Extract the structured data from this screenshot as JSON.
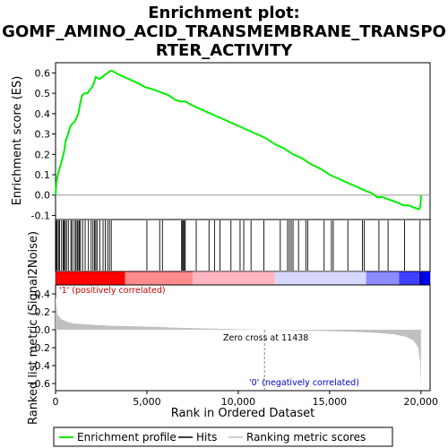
{
  "chart_data": {
    "type": "line",
    "title_lines": [
      "Enrichment plot:",
      "GOMF_AMINO_ACID_TRANSMEMBRANE_TRANSPO",
      "RTER_ACTIVITY"
    ],
    "ylabel_top": "Enrichment score (ES)",
    "ylabel_bottom": "Ranked list metric (Signal2Noise)",
    "xlabel": "Rank in Ordered Dataset",
    "xlim": [
      0,
      20500
    ],
    "xticks": [
      0,
      5000,
      10000,
      15000,
      20000
    ],
    "xtick_labels": [
      "0",
      "5,000",
      "10,000",
      "15,000",
      "20,000"
    ],
    "es_ylim": [
      -0.12,
      0.65
    ],
    "es_yticks": [
      -0.1,
      0.0,
      0.1,
      0.2,
      0.3,
      0.4,
      0.5,
      0.6
    ],
    "es_ytick_labels": [
      "-0.1",
      "0.0",
      "0.1",
      "0.2",
      "0.3",
      "0.4",
      "0.5",
      "0.6"
    ],
    "metric_ylim": [
      -0.68,
      0.5
    ],
    "metric_yticks": [
      -0.6,
      -0.4,
      -0.2,
      0.0,
      0.2,
      0.4
    ],
    "metric_ytick_labels": [
      "-0.6",
      "-0.4",
      "-0.2",
      "0.0",
      "0.2",
      "0.4"
    ],
    "es_curve": {
      "rank": [
        0,
        60,
        150,
        250,
        380,
        480,
        560,
        650,
        780,
        900,
        1050,
        1150,
        1250,
        1350,
        1450,
        1600,
        1750,
        1900,
        2000,
        2100,
        2200,
        2400,
        2550,
        2700,
        2850,
        3000,
        3100,
        3500,
        4000,
        4500,
        4900,
        5300,
        5600,
        5900,
        6200,
        6500,
        6800,
        7100,
        7500,
        8000,
        8500,
        9000,
        9500,
        10000,
        10500,
        11000,
        11500,
        12000,
        12500,
        13000,
        13500,
        14000,
        14500,
        15000,
        15500,
        16000,
        16500,
        17000,
        17300,
        17600,
        17900,
        18200,
        18500,
        18800,
        19000,
        19300,
        19600,
        19900,
        19980,
        20000
      ],
      "es": [
        0.0,
        0.07,
        0.11,
        0.14,
        0.18,
        0.22,
        0.27,
        0.29,
        0.33,
        0.35,
        0.36,
        0.38,
        0.4,
        0.45,
        0.49,
        0.5,
        0.5,
        0.52,
        0.53,
        0.55,
        0.58,
        0.57,
        0.58,
        0.59,
        0.6,
        0.61,
        0.61,
        0.59,
        0.57,
        0.55,
        0.53,
        0.52,
        0.51,
        0.5,
        0.49,
        0.47,
        0.46,
        0.46,
        0.44,
        0.42,
        0.4,
        0.38,
        0.36,
        0.34,
        0.32,
        0.3,
        0.28,
        0.25,
        0.23,
        0.2,
        0.18,
        0.15,
        0.13,
        0.1,
        0.08,
        0.06,
        0.04,
        0.02,
        0.01,
        -0.01,
        -0.01,
        -0.02,
        -0.03,
        -0.04,
        -0.05,
        -0.05,
        -0.06,
        -0.07,
        -0.05,
        0.0
      ]
    },
    "hits": [
      40,
      90,
      160,
      220,
      330,
      420,
      470,
      530,
      600,
      700,
      840,
      900,
      1020,
      1100,
      1180,
      1230,
      1300,
      1360,
      1480,
      1620,
      1800,
      1950,
      2050,
      2130,
      2200,
      2270,
      2420,
      2600,
      2720,
      2850,
      2950,
      3050,
      5000,
      5700,
      5850,
      6900,
      6950,
      7000,
      7050,
      7100,
      7700,
      8400,
      8700,
      9000,
      9600,
      10100,
      10300,
      10700,
      11400,
      12300,
      12700,
      12800,
      12900,
      13000,
      13300,
      13700,
      13800,
      14700,
      15100,
      15200,
      16000,
      16800,
      16900,
      17700,
      18200,
      19100,
      19950
    ],
    "metric": {
      "rank": [
        0,
        100,
        300,
        600,
        1000,
        2000,
        3000,
        5000,
        7000,
        9000,
        11438,
        13000,
        15000,
        16500,
        17500,
        18500,
        19200,
        19600,
        19850,
        19950,
        20000
      ],
      "value": [
        0.38,
        0.17,
        0.12,
        0.09,
        0.07,
        0.055,
        0.045,
        0.035,
        0.02,
        0.01,
        0.0,
        -0.005,
        -0.015,
        -0.025,
        -0.035,
        -0.05,
        -0.08,
        -0.12,
        -0.2,
        -0.35,
        -0.63
      ]
    },
    "zero_cross_rank": 11438,
    "annotations": {
      "positive": "'1' (positively correlated)",
      "negative": "'0' (negatively correlated)",
      "zero_cross": "Zero cross at 11438"
    },
    "legend": {
      "placement": "bottom",
      "entries": [
        "Enrichment profile",
        "Hits",
        "Ranking metric scores"
      ]
    },
    "colors": {
      "es_line": "#00ee00",
      "hits": "#000000",
      "metric_fill": "#c0c0c0",
      "band_red": "#ff0000",
      "band_pink": "#ffb6c1",
      "band_lavender": "#d8d8ff",
      "band_blue": "#0000ff"
    }
  }
}
